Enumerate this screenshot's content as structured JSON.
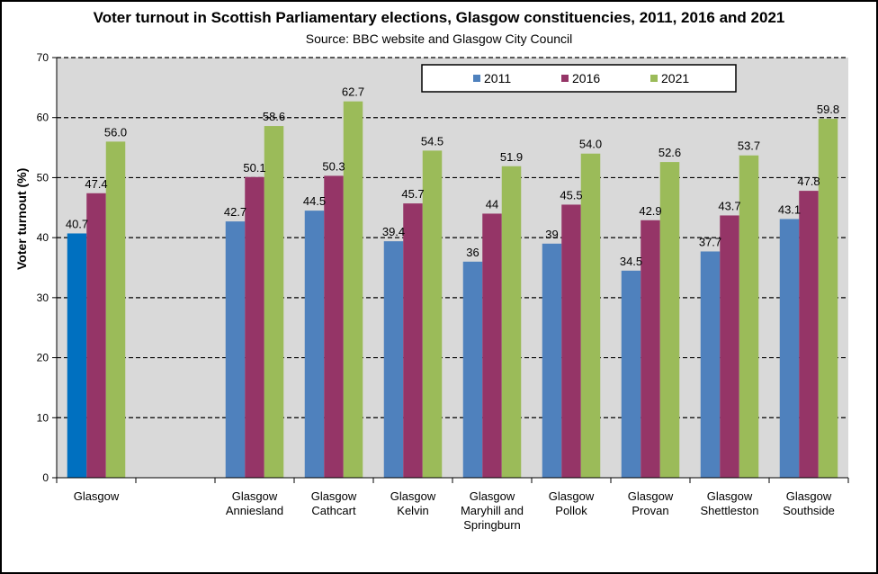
{
  "chart_data": {
    "type": "bar",
    "title": "Voter turnout in Scottish Parliamentary elections, Glasgow constituencies, 2011, 2016 and 2021",
    "subtitle": "Source: BBC website and Glasgow City Council",
    "ylabel": "Voter turnout (%)",
    "xlabel": "",
    "ylim": [
      0,
      70
    ],
    "yticks": [
      0,
      10,
      20,
      30,
      40,
      50,
      60,
      70
    ],
    "grid": "dashed horizontal",
    "legend": "top-right",
    "categories": [
      [
        "Glasgow"
      ],
      [
        ""
      ],
      [
        "Glasgow",
        "Anniesland"
      ],
      [
        "Glasgow",
        "Cathcart"
      ],
      [
        "Glasgow",
        "Kelvin"
      ],
      [
        "Glasgow",
        "Maryhill and",
        "Springburn"
      ],
      [
        "Glasgow",
        "Pollok"
      ],
      [
        "Glasgow",
        "Provan"
      ],
      [
        "Glasgow",
        "Shettleston"
      ],
      [
        "Glasgow",
        "Southside"
      ]
    ],
    "series": [
      {
        "name": "2011",
        "color": "#4F81BD",
        "values": [
          40.7,
          null,
          42.7,
          44.5,
          39.4,
          36,
          39,
          34.5,
          37.7,
          43.1
        ],
        "labels": [
          "40.7",
          "",
          "42.7",
          "44.5",
          "39.4",
          "36",
          "39",
          "34.5",
          "37.7",
          "43.1"
        ]
      },
      {
        "name": "2016",
        "color": "#953567",
        "values": [
          47.4,
          null,
          50.1,
          50.3,
          45.7,
          44,
          45.5,
          42.9,
          43.7,
          47.8
        ],
        "labels": [
          "47.4",
          "",
          "50.1",
          "50.3",
          "45.7",
          "44",
          "45.5",
          "42.9",
          "43.7",
          "47.8"
        ]
      },
      {
        "name": "2021",
        "color": "#9BBB59",
        "values": [
          56.0,
          null,
          58.6,
          62.7,
          54.5,
          51.9,
          54.0,
          52.6,
          53.7,
          59.8
        ],
        "labels": [
          "56.0",
          "",
          "58.6",
          "62.7",
          "54.5",
          "51.9",
          "54.0",
          "52.6",
          "53.7",
          "59.8"
        ]
      }
    ],
    "highlight": {
      "category_index": 0,
      "series_index": 0,
      "color": "#0070C0"
    },
    "plot_background": "#D9D9D9"
  }
}
